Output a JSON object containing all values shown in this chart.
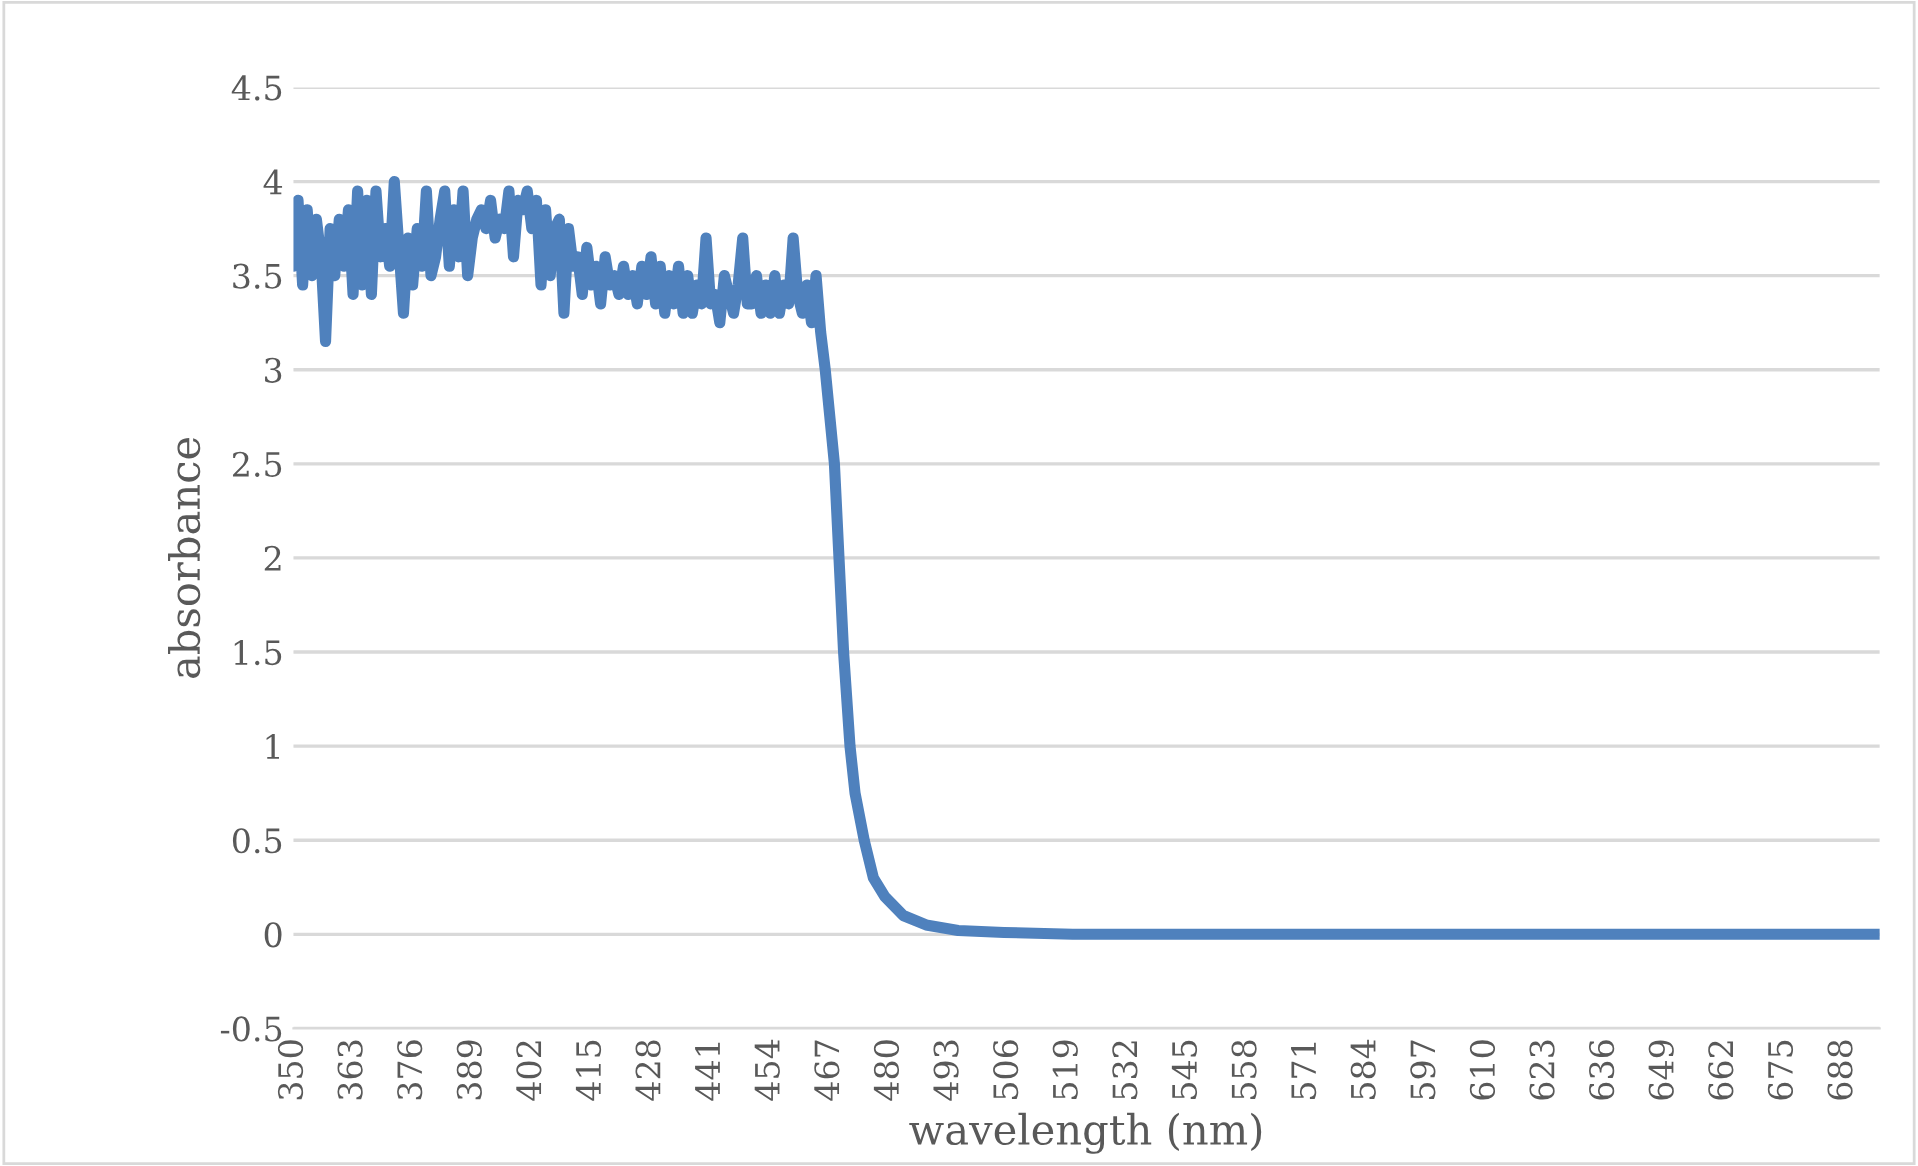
{
  "chart_data": {
    "type": "line",
    "xlabel": "wavelength (nm)",
    "ylabel": "absorbance",
    "x": [
      350,
      351,
      352,
      353,
      354,
      355,
      356,
      357,
      358,
      359,
      360,
      361,
      362,
      363,
      364,
      365,
      366,
      367,
      368,
      369,
      370,
      371,
      372,
      373,
      374,
      375,
      376,
      377,
      378,
      379,
      380,
      381,
      382,
      383,
      384,
      385,
      386,
      387,
      388,
      389,
      390,
      391,
      392,
      393,
      394,
      395,
      396,
      397,
      398,
      399,
      400,
      401,
      402,
      403,
      404,
      405,
      406,
      407,
      408,
      409,
      410,
      411,
      412,
      413,
      414,
      415,
      416,
      417,
      418,
      419,
      420,
      421,
      422,
      423,
      424,
      425,
      426,
      427,
      428,
      429,
      430,
      431,
      432,
      433,
      434,
      435,
      436,
      437,
      438,
      439,
      440,
      441,
      442,
      443,
      444,
      445,
      446,
      447,
      448,
      449,
      450,
      451,
      452,
      453,
      454,
      455,
      456,
      457,
      458,
      459,
      460,
      461,
      462,
      463,
      464,
      465,
      466,
      467,
      468,
      469,
      470,
      471.4,
      472.5,
      474.5,
      476.5,
      479,
      483,
      488,
      495,
      505,
      520,
      696
    ],
    "series": [
      {
        "color": "#4f81bd",
        "values": [
          3.55,
          3.9,
          3.45,
          3.85,
          3.5,
          3.8,
          3.6,
          3.15,
          3.75,
          3.5,
          3.8,
          3.55,
          3.85,
          3.4,
          3.95,
          3.45,
          3.9,
          3.4,
          3.95,
          3.6,
          3.75,
          3.55,
          4.0,
          3.65,
          3.3,
          3.7,
          3.45,
          3.75,
          3.55,
          3.95,
          3.5,
          3.6,
          3.8,
          3.95,
          3.55,
          3.85,
          3.6,
          3.95,
          3.5,
          3.7,
          3.8,
          3.85,
          3.75,
          3.9,
          3.7,
          3.8,
          3.75,
          3.95,
          3.6,
          3.9,
          3.85,
          3.95,
          3.75,
          3.9,
          3.45,
          3.85,
          3.5,
          3.75,
          3.8,
          3.3,
          3.75,
          3.55,
          3.6,
          3.4,
          3.65,
          3.45,
          3.55,
          3.35,
          3.6,
          3.45,
          3.5,
          3.4,
          3.55,
          3.4,
          3.5,
          3.35,
          3.55,
          3.4,
          3.6,
          3.35,
          3.55,
          3.3,
          3.5,
          3.35,
          3.55,
          3.3,
          3.5,
          3.3,
          3.45,
          3.35,
          3.7,
          3.35,
          3.4,
          3.25,
          3.5,
          3.4,
          3.3,
          3.45,
          3.7,
          3.35,
          3.35,
          3.5,
          3.3,
          3.45,
          3.3,
          3.5,
          3.3,
          3.45,
          3.35,
          3.7,
          3.4,
          3.3,
          3.45,
          3.25,
          3.5,
          3.2,
          3.0,
          2.75,
          2.5,
          2.0,
          1.5,
          1.0,
          0.75,
          0.5,
          0.3,
          0.2,
          0.1,
          0.05,
          0.02,
          0.01,
          0,
          0
        ]
      }
    ],
    "xlim": [
      350,
      696
    ],
    "xticks": [
      350,
      363,
      376,
      389,
      402,
      415,
      428,
      441,
      454,
      467,
      480,
      493,
      506,
      519,
      532,
      545,
      558,
      571,
      584,
      597,
      610,
      623,
      636,
      649,
      662,
      675,
      688
    ],
    "ylim": [
      -0.5,
      4.5
    ],
    "yticks": [
      -0.5,
      0,
      0.5,
      1,
      1.5,
      2,
      2.5,
      3,
      3.5,
      4,
      4.5
    ],
    "grid": "y",
    "legend": false,
    "marker": "none",
    "line_style": "solid"
  }
}
